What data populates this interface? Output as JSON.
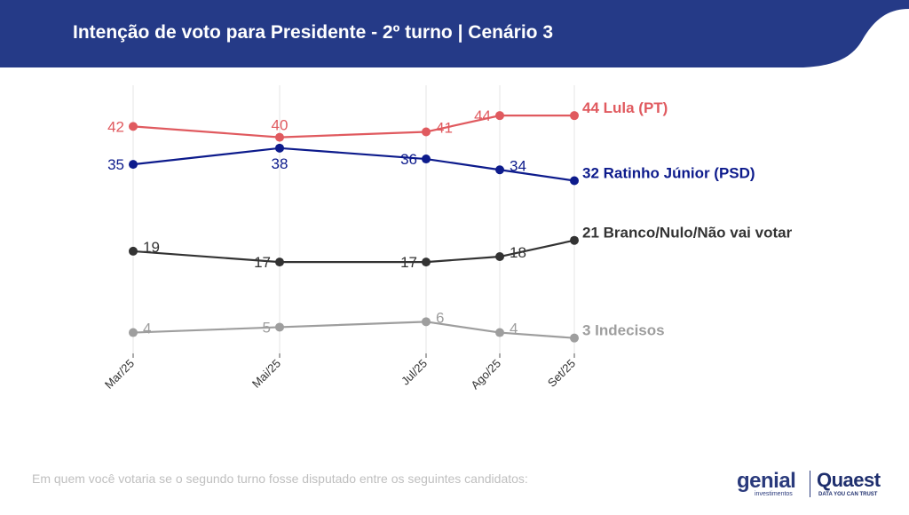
{
  "header": {
    "title": "Intenção de voto para Presidente - 2º turno | Cenário 3",
    "background_color": "#253a87"
  },
  "chart_data": {
    "type": "line",
    "categories": [
      "Mar/25",
      "Mai/25",
      "Jul/25",
      "Ago/25",
      "Set/25"
    ],
    "ylim": [
      0,
      50
    ],
    "grid": "vertical",
    "legend": "end-labels-right",
    "series": [
      {
        "key": "lula",
        "name": "Lula (PT)",
        "values": [
          42,
          40,
          41,
          44,
          44
        ],
        "color": "#e05a5f",
        "end_label": "44 Lula (PT)",
        "label_side": [
          "left",
          "above",
          "right",
          "left",
          "none"
        ]
      },
      {
        "key": "ratinho",
        "name": "Ratinho Júnior (PSD)",
        "values": [
          35,
          38,
          36,
          34,
          32
        ],
        "color": "#0d1b8c",
        "end_label": "32 Ratinho Júnior (PSD)",
        "label_side": [
          "left",
          "below",
          "left",
          "right",
          "none"
        ]
      },
      {
        "key": "branco",
        "name": "Branco/Nulo/Não vai votar",
        "values": [
          19,
          17,
          17,
          18,
          21
        ],
        "color": "#333333",
        "end_label": "21 Branco/Nulo/Não vai votar",
        "label_side": [
          "right",
          "left",
          "left",
          "right",
          "none"
        ]
      },
      {
        "key": "indecisos",
        "name": "Indecisos",
        "values": [
          4,
          5,
          6,
          4,
          3
        ],
        "color": "#9e9e9e",
        "end_label": "3 Indecisos",
        "label_side": [
          "right",
          "left",
          "right",
          "right",
          "none"
        ]
      }
    ]
  },
  "footnote": "Em quem você votaria se o segundo turno fosse disputado entre os seguintes candidatos:",
  "logos": {
    "genial": "genial",
    "genial_sub": "investimentos",
    "quaest": "Quaest",
    "quaest_sub": "DATA YOU CAN TRUST"
  }
}
